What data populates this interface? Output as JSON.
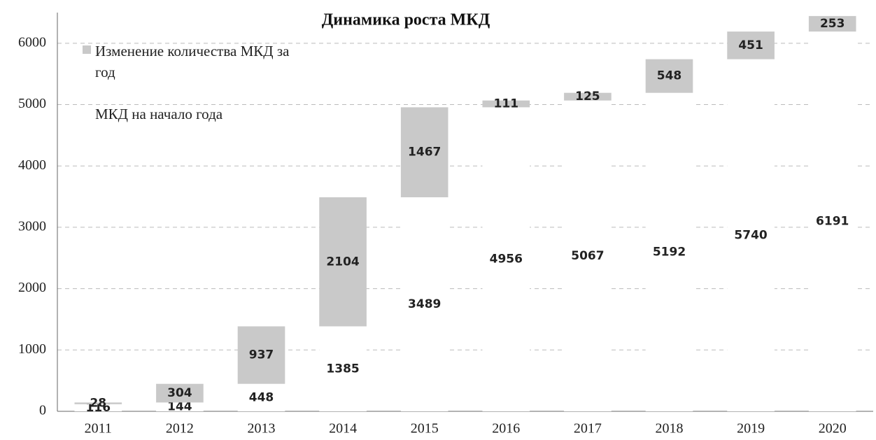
{
  "chart_data": {
    "type": "stacked_bar",
    "title": "Динамика роста МКД",
    "categories": [
      "2011",
      "2012",
      "2013",
      "2014",
      "2015",
      "2016",
      "2017",
      "2018",
      "2019",
      "2020"
    ],
    "series": [
      {
        "name": "МКД на начало года",
        "color": "#ffffff",
        "values": [
          116,
          144,
          448,
          1385,
          3489,
          4956,
          5067,
          5192,
          5740,
          6191
        ]
      },
      {
        "name": "Изменение количества МКД за год",
        "color": "#c9c9c9",
        "values": [
          28,
          304,
          937,
          2104,
          1467,
          111,
          125,
          548,
          451,
          253
        ]
      }
    ],
    "ylim": [
      0,
      6500
    ],
    "yticks": [
      0,
      1000,
      2000,
      3000,
      4000,
      5000,
      6000
    ],
    "grid": true,
    "legend": "top-left"
  }
}
